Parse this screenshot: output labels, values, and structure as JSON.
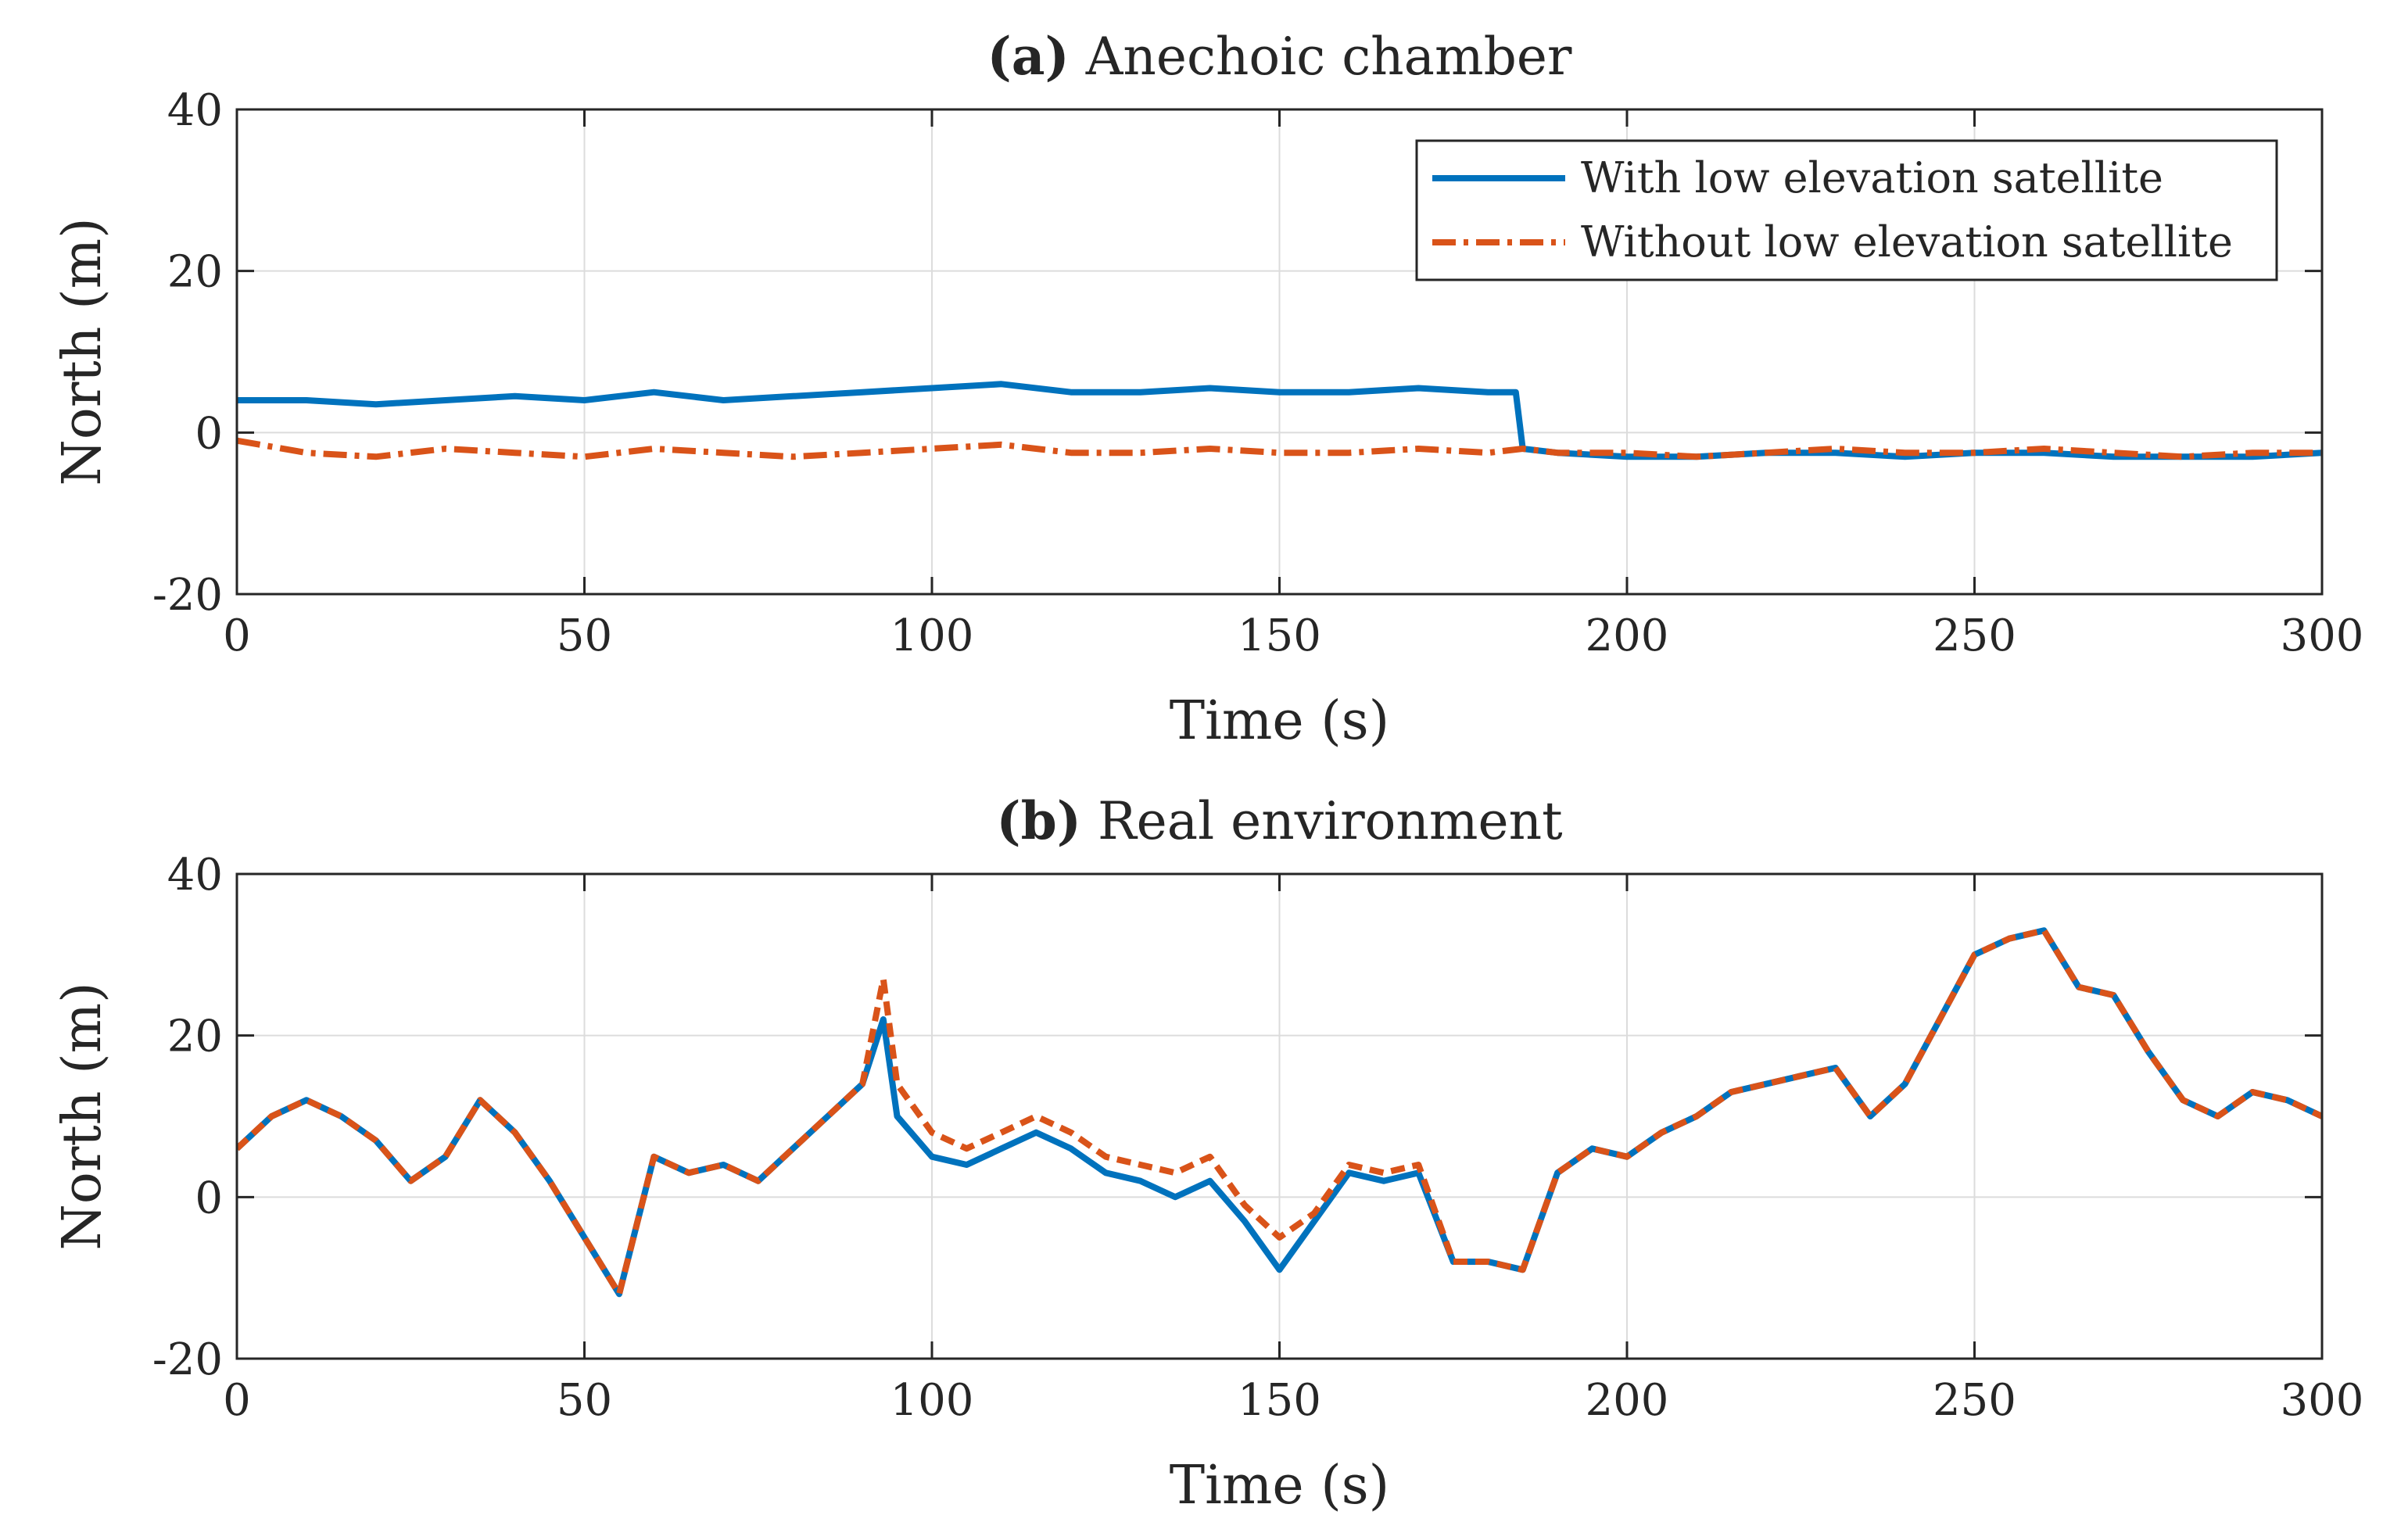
{
  "chart_data": [
    {
      "type": "line",
      "title_bold": "(a)",
      "title": "Anechoic chamber",
      "xlabel": "Time (s)",
      "ylabel": "North (m)",
      "xlim": [
        0,
        300
      ],
      "ylim": [
        -20,
        40
      ],
      "xticks": [
        0,
        50,
        100,
        150,
        200,
        250,
        300
      ],
      "yticks": [
        -20,
        0,
        20,
        40
      ],
      "grid": true,
      "legend_position": "top-right",
      "series": [
        {
          "name": "With low elevation satellite",
          "color": "#0072BD",
          "style": "solid",
          "x": [
            0,
            10,
            20,
            30,
            40,
            50,
            60,
            70,
            80,
            90,
            100,
            110,
            120,
            130,
            140,
            150,
            160,
            170,
            180,
            184,
            185,
            190,
            200,
            210,
            220,
            230,
            240,
            250,
            260,
            270,
            280,
            290,
            300
          ],
          "y": [
            4,
            4,
            3.5,
            4,
            4.5,
            4,
            5,
            4,
            4.5,
            5,
            5.5,
            6,
            5,
            5,
            5.5,
            5,
            5,
            5.5,
            5,
            5,
            -2,
            -2.5,
            -3,
            -3,
            -2.5,
            -2.5,
            -3,
            -2.5,
            -2.5,
            -3,
            -3,
            -3,
            -2.5
          ]
        },
        {
          "name": "Without low elevation satellite",
          "color": "#D95319",
          "style": "dashdot",
          "x": [
            0,
            10,
            20,
            30,
            40,
            50,
            60,
            70,
            80,
            90,
            100,
            110,
            120,
            130,
            140,
            150,
            160,
            170,
            180,
            185,
            190,
            200,
            210,
            220,
            230,
            240,
            250,
            260,
            270,
            280,
            290,
            300
          ],
          "y": [
            -1,
            -2.5,
            -3,
            -2,
            -2.5,
            -3,
            -2,
            -2.5,
            -3,
            -2.5,
            -2,
            -1.5,
            -2.5,
            -2.5,
            -2,
            -2.5,
            -2.5,
            -2,
            -2.5,
            -2,
            -2.5,
            -2.5,
            -3,
            -2.5,
            -2,
            -2.5,
            -2.5,
            -2,
            -2.5,
            -3,
            -2.5,
            -2.5
          ]
        }
      ]
    },
    {
      "type": "line",
      "title_bold": "(b)",
      "title": "Real environment",
      "xlabel": "Time (s)",
      "ylabel": "North (m)",
      "xlim": [
        0,
        300
      ],
      "ylim": [
        -20,
        40
      ],
      "xticks": [
        0,
        50,
        100,
        150,
        200,
        250,
        300
      ],
      "yticks": [
        -20,
        0,
        20,
        40
      ],
      "grid": true,
      "series": [
        {
          "name": "With low elevation satellite",
          "color": "#0072BD",
          "style": "solid",
          "x": [
            0,
            5,
            10,
            15,
            20,
            25,
            30,
            35,
            40,
            45,
            50,
            55,
            60,
            65,
            70,
            75,
            80,
            85,
            90,
            93,
            95,
            100,
            105,
            110,
            115,
            120,
            125,
            130,
            135,
            140,
            145,
            150,
            155,
            160,
            165,
            170,
            175,
            180,
            185,
            190,
            195,
            200,
            205,
            210,
            215,
            220,
            225,
            230,
            235,
            240,
            245,
            250,
            255,
            260,
            265,
            270,
            275,
            280,
            285,
            290,
            295,
            300
          ],
          "y": [
            6,
            10,
            12,
            10,
            7,
            2,
            5,
            12,
            8,
            2,
            -5,
            -12,
            5,
            3,
            4,
            2,
            6,
            10,
            14,
            22,
            10,
            5,
            4,
            6,
            8,
            6,
            3,
            2,
            0,
            2,
            -3,
            -9,
            -3,
            3,
            2,
            3,
            -8,
            -8,
            -9,
            3,
            6,
            5,
            8,
            10,
            13,
            14,
            15,
            16,
            10,
            14,
            22,
            30,
            32,
            33,
            26,
            25,
            18,
            12,
            10,
            13,
            12,
            10
          ]
        },
        {
          "name": "Without low elevation satellite",
          "color": "#D95319",
          "style": "dashed",
          "x": [
            0,
            5,
            10,
            15,
            20,
            25,
            30,
            35,
            40,
            45,
            50,
            55,
            60,
            65,
            70,
            75,
            80,
            85,
            90,
            93,
            95,
            100,
            105,
            110,
            115,
            120,
            125,
            130,
            135,
            140,
            145,
            150,
            155,
            160,
            165,
            170,
            175,
            180,
            185,
            190,
            195,
            200,
            205,
            210,
            215,
            220,
            225,
            230,
            235,
            240,
            245,
            250,
            255,
            260,
            265,
            270,
            275,
            280,
            285,
            290,
            295,
            300
          ],
          "y": [
            6,
            10,
            12,
            10,
            7,
            2,
            5,
            12,
            8,
            2,
            -5,
            -12,
            5,
            3,
            4,
            2,
            6,
            10,
            14,
            27,
            14,
            8,
            6,
            8,
            10,
            8,
            5,
            4,
            3,
            5,
            -1,
            -5,
            -2,
            4,
            3,
            4,
            -8,
            -8,
            -9,
            3,
            6,
            5,
            8,
            10,
            13,
            14,
            15,
            16,
            10,
            14,
            22,
            30,
            32,
            33,
            26,
            25,
            18,
            12,
            10,
            13,
            12,
            10
          ]
        }
      ]
    }
  ]
}
